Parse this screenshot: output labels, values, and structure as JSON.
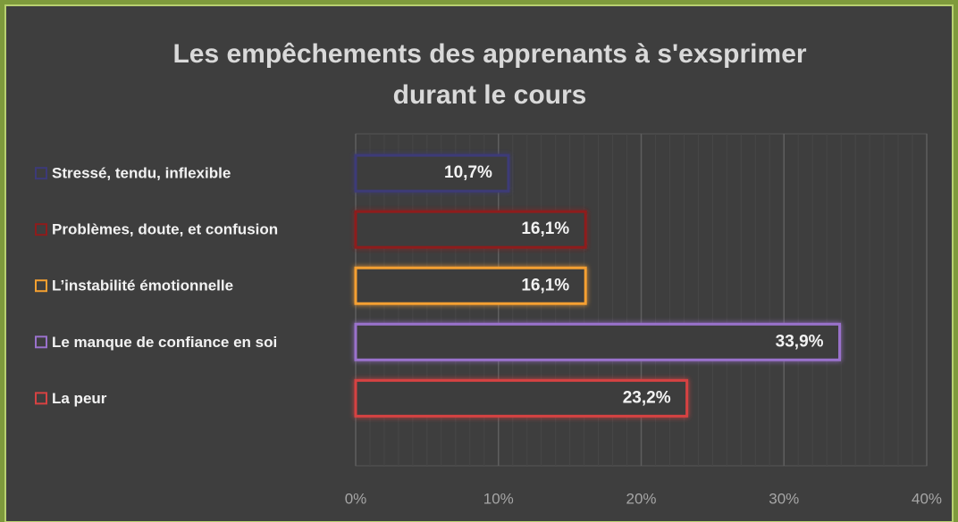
{
  "chart_data": {
    "type": "bar",
    "orientation": "horizontal",
    "title": [
      "Les empêchements des apprenants à s'exsprimer",
      "durant le cours"
    ],
    "categories": [
      "Stressé, tendu, inflexible",
      "Problèmes, doute, et confusion",
      "L’instabilité émotionnelle",
      "Le manque de confiance en soi",
      "La peur"
    ],
    "values": [
      10.7,
      16.1,
      16.1,
      33.9,
      23.2
    ],
    "value_labels": [
      "10,7%",
      "16,1%",
      "16,1%",
      "33,9%",
      "23,2%"
    ],
    "colors": [
      "#3c3a78",
      "#8e1c1c",
      "#f5a030",
      "#9a72cc",
      "#d64242"
    ],
    "xlim": [
      0,
      40
    ],
    "xticks": [
      {
        "value": 0,
        "label": "0%"
      },
      {
        "value": 10,
        "label": "10%"
      },
      {
        "value": 20,
        "label": "20%"
      },
      {
        "value": 30,
        "label": "30%"
      },
      {
        "value": 40,
        "label": "40%"
      }
    ],
    "grid": true
  }
}
